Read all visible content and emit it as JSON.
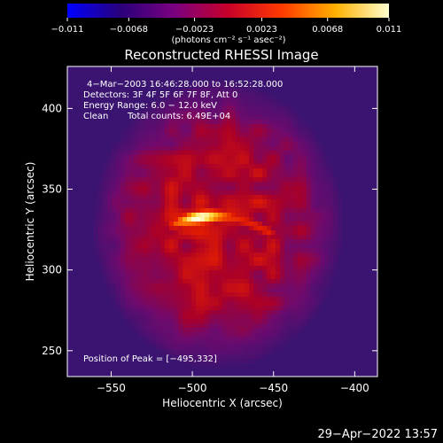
{
  "chart_data": {
    "type": "heatmap",
    "title": "Reconstructed RHESSI Image",
    "xlabel": "Heliocentric X (arcsec)",
    "ylabel": "Heliocentric Y (arcsec)",
    "xlim": [
      -577,
      -386
    ],
    "ylim": [
      234,
      426
    ],
    "x_ticks": [
      -550,
      -500,
      -450,
      -400
    ],
    "x_tick_labels": [
      "−550",
      "−500",
      "−450",
      "−400"
    ],
    "y_ticks": [
      250,
      300,
      350,
      400
    ],
    "y_tick_labels": [
      "250",
      "300",
      "350",
      "400"
    ],
    "colorbar": {
      "range": [
        -0.011,
        0.011
      ],
      "ticks": [
        -0.011,
        -0.0068,
        -0.0023,
        0.0023,
        0.0068,
        0.011
      ],
      "tick_labels": [
        "−0.011",
        "−0.0068",
        "−0.0023",
        "0.0023",
        "0.0068",
        "0.011"
      ],
      "units": "(photons cm⁻² s⁻¹ asec⁻²)",
      "colors": [
        "#0000ff",
        "#2a007a",
        "#7a0080",
        "#c8002a",
        "#ff3a00",
        "#ffb000",
        "#ffffd0"
      ]
    },
    "annotations": {
      "time_range": "4−Mar−2003 16:46:28.000 to 16:52:28.000",
      "detectors": "Detectors: 3F 4F 5F 6F 7F 8F, Att 0",
      "energy": "Energy Range: 6.0 − 12.0 keV",
      "method": "Clean",
      "counts": "Total counts: 6.49E+04",
      "peak": "Position of Peak = [−495,332]"
    },
    "peak": [
      -495,
      332
    ],
    "features": {
      "bright_loop": {
        "x_start": -512,
        "x_end": -452,
        "y": 328,
        "peak_x": -495,
        "peak_y": 332
      },
      "diffuse_disk": {
        "center": [
          -484,
          328
        ],
        "radius_x": 78,
        "radius_y": 90
      }
    }
  },
  "footer": {
    "timestamp": "29−Apr−2022 13:57"
  }
}
